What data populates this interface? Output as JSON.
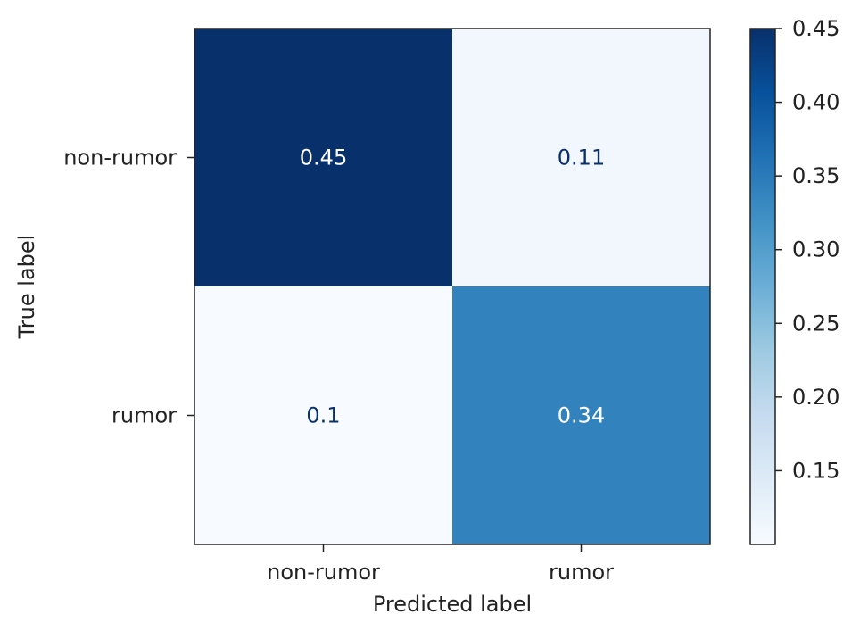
{
  "chart_data": {
    "type": "heatmap",
    "title": "",
    "xlabel": "Predicted label",
    "ylabel": "True label",
    "x_categories": [
      "non-rumor",
      "rumor"
    ],
    "y_categories": [
      "non-rumor",
      "rumor"
    ],
    "values": [
      [
        0.45,
        0.11
      ],
      [
        0.1,
        0.34
      ]
    ],
    "cell_labels": [
      [
        "0.45",
        "0.11"
      ],
      [
        "0.1",
        "0.34"
      ]
    ],
    "colormap": "Blues",
    "color_scale": {
      "low_color": "#f7fbff",
      "high_color": "#08306b",
      "min": 0.1,
      "max": 0.45
    },
    "colorbar": {
      "ticks": [
        0.15,
        0.2,
        0.25,
        0.3,
        0.35,
        0.4,
        0.45
      ],
      "tick_labels": [
        "0.15",
        "0.20",
        "0.25",
        "0.30",
        "0.35",
        "0.40",
        "0.45"
      ]
    },
    "text_colors": {
      "dark": "#ffffff",
      "light": "#08306b"
    }
  }
}
